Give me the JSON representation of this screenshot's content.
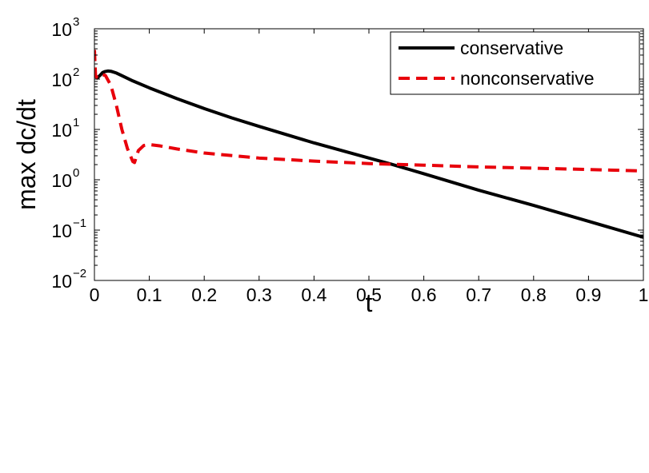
{
  "chart_data": {
    "type": "line",
    "title": "",
    "xlabel": "t",
    "ylabel": "max dc/dt",
    "xlim": [
      0,
      1
    ],
    "ylim": [
      0.01,
      1000
    ],
    "yscale": "log",
    "grid": false,
    "legend_position": "top-right",
    "x_ticks": [
      0,
      0.1,
      0.2,
      0.3,
      0.4,
      0.5,
      0.6,
      0.7,
      0.8,
      0.9,
      1
    ],
    "x_tick_labels": [
      "0",
      "0.1",
      "0.2",
      "0.3",
      "0.4",
      "0.5",
      "0.6",
      "0.7",
      "0.8",
      "0.9",
      "1"
    ],
    "y_ticks": [
      {
        "value": 0.01,
        "base": "10",
        "exp": "−2"
      },
      {
        "value": 0.1,
        "base": "10",
        "exp": "−1"
      },
      {
        "value": 1,
        "base": "10",
        "exp": "0"
      },
      {
        "value": 10,
        "base": "10",
        "exp": "1"
      },
      {
        "value": 100,
        "base": "10",
        "exp": "2"
      },
      {
        "value": 1000,
        "base": "10",
        "exp": "3"
      }
    ],
    "series": [
      {
        "name": "conservative",
        "color": "#000000",
        "style": "solid",
        "x": [
          0,
          0.002,
          0.005,
          0.01,
          0.015,
          0.02,
          0.025,
          0.03,
          0.04,
          0.05,
          0.07,
          0.1,
          0.15,
          0.2,
          0.25,
          0.3,
          0.4,
          0.5,
          0.54,
          0.6,
          0.7,
          0.8,
          0.9,
          1.0
        ],
        "y": [
          140,
          115,
          105,
          118,
          135,
          142,
          145,
          143,
          132,
          117,
          92,
          67,
          41,
          26,
          17,
          11.5,
          5.4,
          2.7,
          2.05,
          1.32,
          0.62,
          0.31,
          0.15,
          0.072
        ]
      },
      {
        "name": "nonconservative",
        "color": "#e8000b",
        "style": "dashed",
        "x": [
          0,
          0.002,
          0.005,
          0.01,
          0.015,
          0.02,
          0.03,
          0.04,
          0.05,
          0.06,
          0.07,
          0.073,
          0.08,
          0.09,
          0.1,
          0.12,
          0.15,
          0.2,
          0.3,
          0.4,
          0.5,
          0.6,
          0.7,
          0.8,
          0.9,
          1.0
        ],
        "y": [
          380,
          120,
          105,
          115,
          122,
          118,
          75,
          30,
          10,
          4.2,
          2.3,
          2.2,
          3.8,
          4.8,
          5.0,
          4.7,
          4.1,
          3.4,
          2.7,
          2.35,
          2.1,
          1.95,
          1.8,
          1.7,
          1.6,
          1.5
        ]
      }
    ]
  }
}
